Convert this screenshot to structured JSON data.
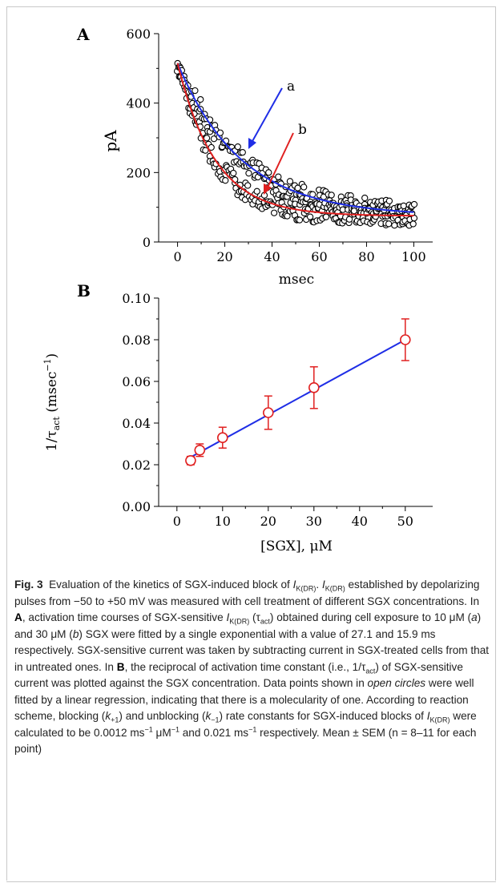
{
  "chart_data": [
    {
      "panel": "A",
      "type": "scatter",
      "xlabel": "msec",
      "ylabel": "pA",
      "xlim": [
        -8,
        108
      ],
      "ylim": [
        0,
        600
      ],
      "xticks": [
        "0",
        "20",
        "40",
        "60",
        "80",
        "100"
      ],
      "yticks": [
        "0",
        "200",
        "400",
        "600"
      ],
      "series": [
        {
          "name": "a",
          "color": "#1f2ee6",
          "type": "fit",
          "tau": 27.1,
          "amplitude": 440,
          "offset": 75
        },
        {
          "name": "b",
          "color": "#e02020",
          "type": "fit",
          "tau": 15.9,
          "amplitude": 440,
          "offset": 75
        },
        {
          "name": "data",
          "type": "open-circles",
          "color": "#000000"
        }
      ],
      "annotations": [
        {
          "label": "a",
          "arrow_to": [
            30,
            270
          ]
        },
        {
          "label": "b",
          "arrow_to": [
            25,
            135
          ]
        }
      ],
      "panel_label": "A"
    },
    {
      "panel": "B",
      "type": "scatter",
      "xlabel": "[SGX], μM",
      "ylabel": "1/τact (msec⁻¹)",
      "xlim": [
        -4,
        56
      ],
      "ylim": [
        0,
        0.1
      ],
      "xticks": [
        "0",
        "10",
        "20",
        "30",
        "40",
        "50"
      ],
      "yticks": [
        "0.00",
        "0.02",
        "0.04",
        "0.06",
        "0.08",
        "0.10"
      ],
      "x": [
        3,
        5,
        10,
        20,
        30,
        50
      ],
      "y": [
        0.022,
        0.027,
        0.033,
        0.045,
        0.057,
        0.08
      ],
      "error": [
        0.002,
        0.003,
        0.005,
        0.008,
        0.01,
        0.01
      ],
      "fit_line": {
        "color": "#1f2ee6",
        "x": [
          3,
          50
        ],
        "y": [
          0.0236,
          0.08
        ]
      },
      "marker_color": "#e02020",
      "panel_label": "B"
    }
  ],
  "caption": {
    "label": "Fig. 3",
    "intro": "Evaluation of the kinetics of SGX-induced block of ",
    "current_I": "I",
    "current_sub": "K(DR)",
    "p1": "established by depolarizing pulses from −50 to +50 mV was measured with cell treatment of different SGX concentrations. In ",
    "panelA": "A",
    "p2": ", activation time courses of SGX-sensitive ",
    "p3": " (τ",
    "act": "act",
    "p4": ") obtained during cell exposure to 10 μM (",
    "a": "a",
    "p5": ") and 30 μM (",
    "b": "b",
    "p6": ") SGX were fitted by a single exponential with a value of 27.1 and 15.9 ms respectively. SGX-sensitive current was taken by subtracting current in SGX-treated cells from that in untreated ones. In ",
    "panelB": "B",
    "p7": ", the reciprocal of activation time constant (i.e., 1/τ",
    "p8": ") of SGX-sensitive current was plotted against the SGX concentration. Data points shown in ",
    "open_circles": "open circles",
    "p9": " were well fitted by a linear regression, indicating that there is a molecularity of one. According to reaction scheme, blocking (",
    "k": "k",
    "plus1": "+1",
    "p10": ") and unblocking (",
    "minus1": "−1",
    "p11": ") rate constants for SGX-induced blocks of ",
    "p12": " were calculated to be 0.0012 ms",
    "exp1": "−1",
    "p13": " μM",
    "p14": " and 0.021 ms",
    "p15": " respectively. Mean ± SEM (n = 8–11 for each point)"
  }
}
